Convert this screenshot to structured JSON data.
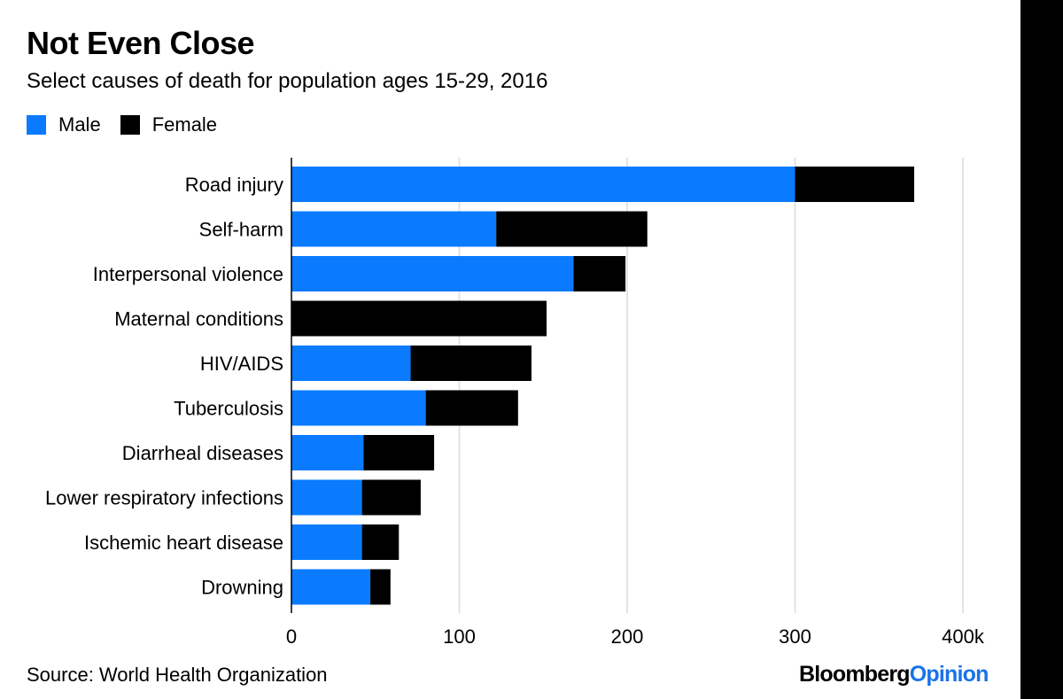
{
  "chart_data": {
    "type": "bar",
    "stacked": true,
    "orientation": "horizontal",
    "title": "Not Even Close",
    "subtitle": "Select causes of death for population ages 15-29, 2016",
    "categories": [
      "Road injury",
      "Self-harm",
      "Interpersonal violence",
      "Maternal conditions",
      "HIV/AIDS",
      "Tuberculosis",
      "Diarrheal diseases",
      "Lower respiratory infections",
      "Ischemic heart disease",
      "Drowning"
    ],
    "series": [
      {
        "name": "Male",
        "color": "#0a7bff",
        "values": [
          300,
          122,
          168,
          0,
          71,
          80,
          43,
          42,
          42,
          47
        ]
      },
      {
        "name": "Female",
        "color": "#000000",
        "values": [
          71,
          90,
          31,
          152,
          72,
          55,
          42,
          35,
          22,
          12
        ]
      }
    ],
    "xlim": [
      0,
      400
    ],
    "xticks": [
      0,
      100,
      200,
      300,
      400
    ],
    "xtick_labels": [
      "0",
      "100",
      "200",
      "300",
      "400k"
    ],
    "grid": true
  },
  "legend": {
    "male": "Male",
    "female": "Female"
  },
  "source": "Source: World Health Organization",
  "brand": {
    "part1": "Bloomberg",
    "part2": "Opinion"
  }
}
